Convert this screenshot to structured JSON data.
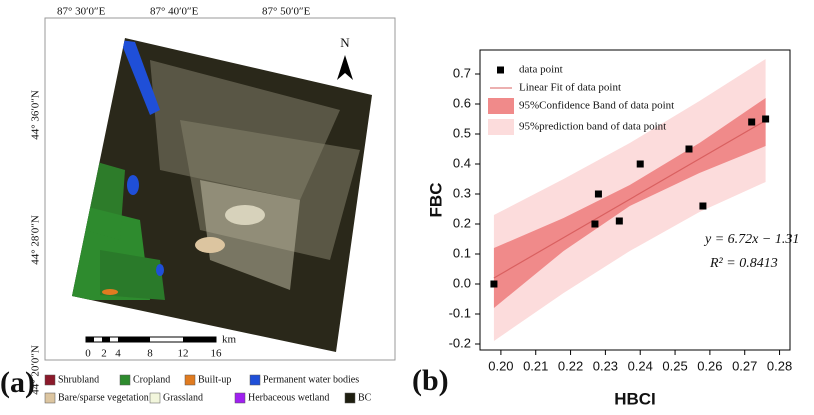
{
  "map": {
    "panel_label": "(a)",
    "lon_labels": [
      "87° 30′0″E",
      "87° 40′0″E",
      "87° 50′0″E"
    ],
    "lat_labels": [
      "44° 36′0″N",
      "44° 28′0″N",
      "44° 20′0″N"
    ],
    "north": "N",
    "scale_bar": {
      "labels": [
        "0",
        "2",
        "4",
        "8",
        "12",
        "16"
      ],
      "unit": "km"
    },
    "legend": [
      {
        "label": "Shrubland",
        "color": "#8b1a2b"
      },
      {
        "label": "Cropland",
        "color": "#2e8b2e"
      },
      {
        "label": "Built-up",
        "color": "#e07b20"
      },
      {
        "label": "Permanent water bodies",
        "color": "#1f4fd8"
      },
      {
        "label": "Bare/sparse vegetation",
        "color": "#dcc5a0"
      },
      {
        "label": "Grassland",
        "color": "#f2f6dc"
      },
      {
        "label": "Herbaceous wetland",
        "color": "#a020f0"
      },
      {
        "label": "BC",
        "color": "#1e1e10"
      }
    ]
  },
  "chart_data": {
    "type": "scatter",
    "panel_label": "(b)",
    "x_label": "HBCI",
    "y_label": "FBC",
    "xlim": [
      0.194,
      0.283
    ],
    "xticks": [
      {
        "value": 0.2,
        "label": "0.20"
      },
      0.21,
      0.22,
      0.23,
      0.24,
      0.25,
      0.26,
      0.27,
      0.28
    ],
    "ylim": [
      -0.22,
      0.78
    ],
    "yticks": [
      -0.2,
      -0.1,
      {
        "value": 0,
        "label": "0.0"
      },
      0.1,
      0.2,
      0.3,
      0.4,
      0.5,
      0.6,
      0.7
    ],
    "series": [
      {
        "name": "data point",
        "kind": "points",
        "color": "#000000",
        "x": [
          0.198,
          0.227,
          0.228,
          0.234,
          0.24,
          0.254,
          0.258,
          0.272,
          0.276
        ],
        "values": [
          0.0,
          0.2,
          0.3,
          0.21,
          0.4,
          0.45,
          0.26,
          0.54,
          0.55
        ]
      },
      {
        "name": "Linear Fit of data point",
        "kind": "line",
        "color": "#d96060",
        "x": [
          0.198,
          0.276
        ],
        "values": [
          0.02,
          0.545
        ]
      },
      {
        "name": "95%Confidence Band of data point",
        "kind": "band",
        "color": "#f08a8a",
        "x": [
          0.198,
          0.218,
          0.237,
          0.257,
          0.276
        ],
        "lower": [
          -0.08,
          0.11,
          0.26,
          0.37,
          0.46
        ],
        "upper": [
          0.12,
          0.22,
          0.33,
          0.47,
          0.62
        ]
      },
      {
        "name": "95%prediction band of data point",
        "kind": "band",
        "color": "#fcdcdc",
        "x": [
          0.198,
          0.218,
          0.237,
          0.257,
          0.276
        ],
        "lower": [
          -0.19,
          -0.03,
          0.11,
          0.24,
          0.34
        ],
        "upper": [
          0.23,
          0.35,
          0.47,
          0.61,
          0.75
        ]
      }
    ],
    "annotations": [
      "y = 6.72x − 1.31",
      "R² = 0.8413"
    ]
  }
}
